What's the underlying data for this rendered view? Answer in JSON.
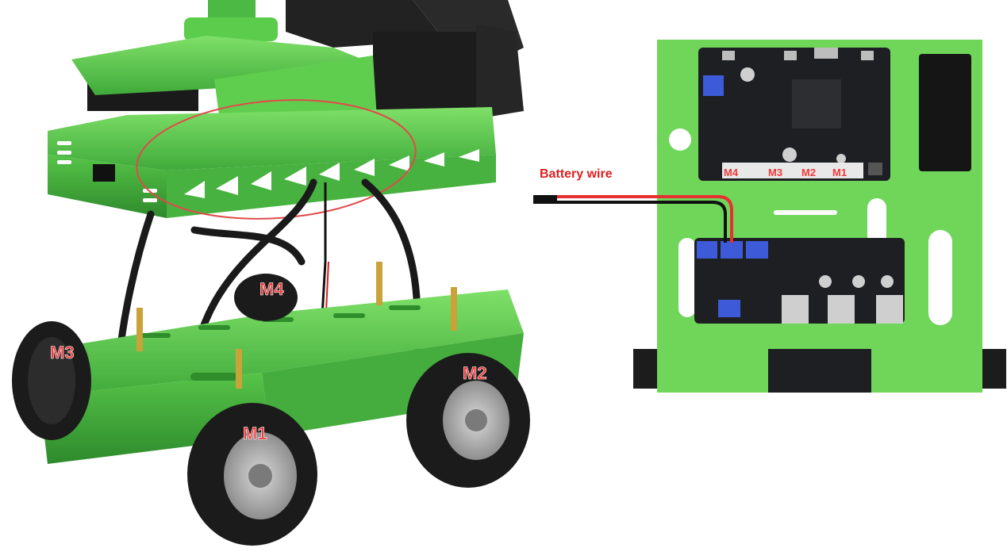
{
  "left_diagram": {
    "wheel_labels": {
      "m1": "M1",
      "m2": "M2",
      "m3": "M3",
      "m4": "M4"
    }
  },
  "right_diagram": {
    "battery_label": "Battery wire",
    "port_labels": {
      "m4": "M4",
      "m3": "M3",
      "m2": "M2",
      "m1": "M1"
    }
  },
  "colors": {
    "chassis_green": "#6fd65a",
    "board_black": "#1e1f22",
    "label_red": "#ef3a3a",
    "terminal_blue": "#3d5bd8"
  }
}
